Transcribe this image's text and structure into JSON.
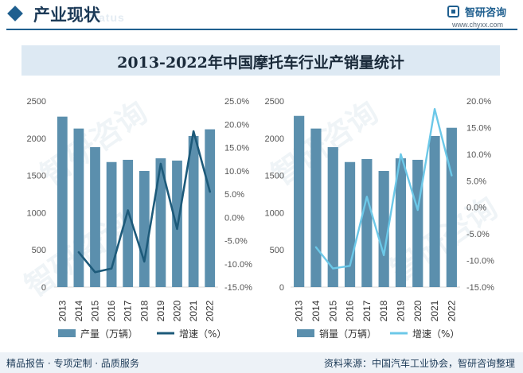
{
  "header": {
    "title": "产业现状",
    "watermark": "Status"
  },
  "logo": {
    "name": "智研咨询",
    "url": "www.chyxx.com"
  },
  "chart_title": "2013-2022年中国摩托车行业产销量统计",
  "chart_data": [
    {
      "type": "bar",
      "title": "",
      "categories": [
        "2013",
        "2014",
        "2015",
        "2016",
        "2017",
        "2018",
        "2019",
        "2020",
        "2021",
        "2022"
      ],
      "series": [
        {
          "name": "产量（万辆）",
          "type": "bar",
          "axis": "left",
          "values": [
            2290,
            2130,
            1880,
            1680,
            1710,
            1560,
            1730,
            1700,
            2030,
            2120
          ]
        },
        {
          "name": "增速（%）",
          "type": "line",
          "axis": "right",
          "values": [
            null,
            -7.5,
            -11.8,
            -11.0,
            1.5,
            -9.5,
            11.5,
            -2.5,
            18.5,
            5.5
          ]
        }
      ],
      "yleft": {
        "ylim": [
          0,
          2500
        ],
        "ticks": [
          "0",
          "500",
          "1000",
          "1500",
          "2000",
          "2500"
        ]
      },
      "yright": {
        "ylim": [
          -15,
          25
        ],
        "ticks": [
          "-15.0%",
          "-10.0%",
          "-5.0%",
          "0.0%",
          "5.0%",
          "10.0%",
          "15.0%",
          "20.0%",
          "25.0%"
        ]
      },
      "legend": [
        "产量（万辆）",
        "增速（%）"
      ]
    },
    {
      "type": "bar",
      "title": "",
      "categories": [
        "2013",
        "2014",
        "2015",
        "2016",
        "2017",
        "2018",
        "2019",
        "2020",
        "2021",
        "2022"
      ],
      "series": [
        {
          "name": "销量（万辆）",
          "type": "bar",
          "axis": "left",
          "values": [
            2300,
            2130,
            1880,
            1680,
            1720,
            1560,
            1730,
            1710,
            2030,
            2140
          ]
        },
        {
          "name": "增速（%）",
          "type": "line",
          "axis": "right",
          "values": [
            null,
            -7.5,
            -11.5,
            -11.0,
            2.0,
            -9.0,
            10.0,
            -0.5,
            18.5,
            6.0
          ]
        }
      ],
      "yleft": {
        "ylim": [
          0,
          2500
        ],
        "ticks": [
          "0",
          "500",
          "1000",
          "1500",
          "2000",
          "2500"
        ]
      },
      "yright": {
        "ylim": [
          -15,
          20
        ],
        "ticks": [
          "-15.0%",
          "-10.0%",
          "-5.0%",
          "0.0%",
          "5.0%",
          "10.0%",
          "15.0%",
          "20.0%"
        ]
      },
      "legend": [
        "销量（万辆）",
        "增速（%）"
      ]
    }
  ],
  "colors": {
    "bar": "#5b8fad",
    "line1": "#1d5a7a",
    "line2": "#6cc8e8",
    "axis_text": "#555555"
  },
  "footer": {
    "left": "精品报告 · 专项定制 · 品质服务",
    "right": "资料来源：中国汽车工业协会，智研咨询整理"
  }
}
